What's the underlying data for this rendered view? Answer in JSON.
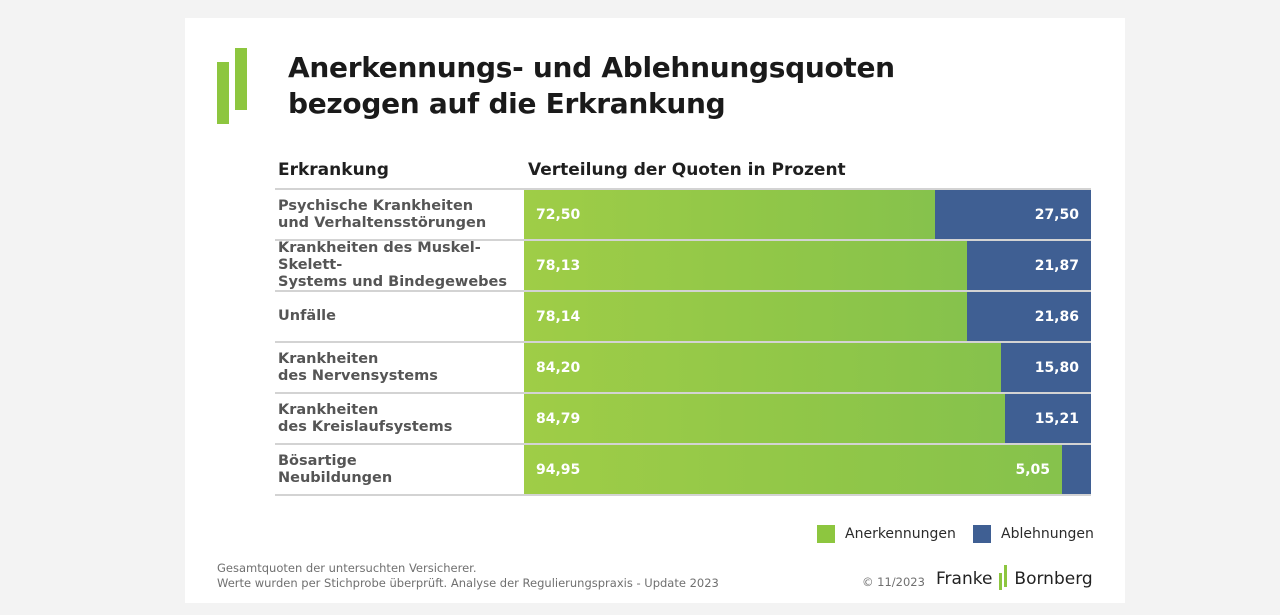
{
  "colors": {
    "accept": "#8dc63f",
    "reject": "#3f5f93"
  },
  "title": {
    "line1": "Anerkennungs- und Ablehnungsquoten",
    "line2": "bezogen auf die Erkrankung"
  },
  "table_header": {
    "label_col": "Erkrankung",
    "bar_col": "Verteilung der Quoten in Prozent"
  },
  "chart_data": {
    "type": "bar",
    "orientation": "horizontal",
    "stacked": true,
    "percent": true,
    "categories": [
      [
        "Psychische Krankheiten",
        "und Verhaltensstörungen"
      ],
      [
        "Krankheiten des Muskel-Skelett-",
        "Systems und Bindegewebes"
      ],
      [
        "Unfälle"
      ],
      [
        "Krankheiten",
        "des Nervensystems"
      ],
      [
        "Krankheiten",
        "des Kreislaufsystems"
      ],
      [
        "Bösartige",
        "Neubildungen"
      ]
    ],
    "series": [
      {
        "name": "Anerkennungen",
        "color": "#8dc63f",
        "values": [
          72.5,
          78.13,
          78.14,
          84.2,
          84.79,
          94.95
        ],
        "labels": [
          "72,50",
          "78,13",
          "78,14",
          "84,20",
          "84,79",
          "94,95"
        ]
      },
      {
        "name": "Ablehnungen",
        "color": "#3f5f93",
        "values": [
          27.5,
          21.87,
          21.86,
          15.8,
          15.21,
          5.05
        ],
        "labels": [
          "27,50",
          "21,87",
          "21,86",
          "15,80",
          "15,21",
          "5,05"
        ]
      }
    ],
    "xlim": [
      0,
      100
    ],
    "legend_position": "bottom-right"
  },
  "legend": [
    {
      "label": "Anerkennungen",
      "color": "#8dc63f"
    },
    {
      "label": "Ablehnungen",
      "color": "#3f5f93"
    }
  ],
  "footnote": {
    "line1": "Gesamtquoten der untersuchten Versicherer.",
    "line2": "Werte wurden per Stichprobe überprüft. Analyse der Regulierungspraxis - Update 2023"
  },
  "copyright": "© 11/2023",
  "brand": {
    "left": "Franke",
    "right": "Bornberg"
  }
}
